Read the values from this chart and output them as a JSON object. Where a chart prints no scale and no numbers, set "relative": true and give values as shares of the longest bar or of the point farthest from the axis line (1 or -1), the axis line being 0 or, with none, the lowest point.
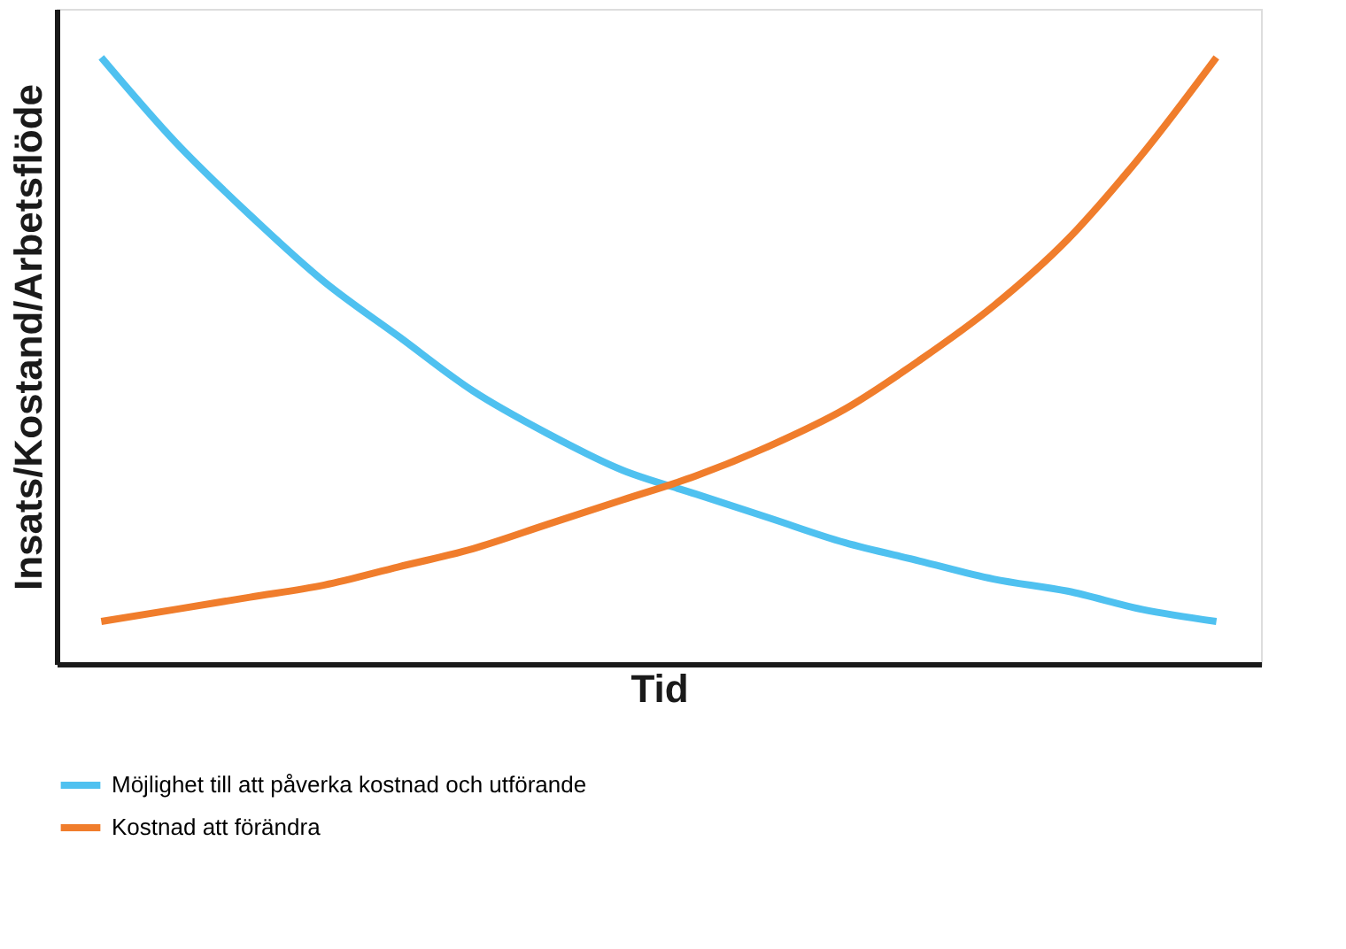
{
  "chart_data": {
    "type": "line",
    "relative": true,
    "xlabel": "Tid",
    "ylabel": "Insats/Kostand/Arbetsflöde",
    "categories": [
      null,
      null,
      null,
      null,
      null,
      null,
      null,
      null,
      null,
      null,
      null,
      null,
      null,
      null,
      null,
      null
    ],
    "series": [
      {
        "name": "Möjlighet till att påverka kostnad och utförande",
        "color": "#4fc1f0",
        "values": [
          1.0,
          0.86,
          0.74,
          0.63,
          0.54,
          0.45,
          0.38,
          0.32,
          0.28,
          0.24,
          0.2,
          0.17,
          0.14,
          0.12,
          0.09,
          0.07
        ]
      },
      {
        "name": "Kostnad att förändra",
        "color": "#f07d2c",
        "values": [
          0.07,
          0.09,
          0.11,
          0.13,
          0.16,
          0.19,
          0.23,
          0.27,
          0.31,
          0.36,
          0.42,
          0.5,
          0.59,
          0.7,
          0.84,
          1.0
        ]
      }
    ],
    "legend": "bottom",
    "tick_labels": false,
    "grid": false,
    "marker": "none",
    "line_style": "solid"
  }
}
